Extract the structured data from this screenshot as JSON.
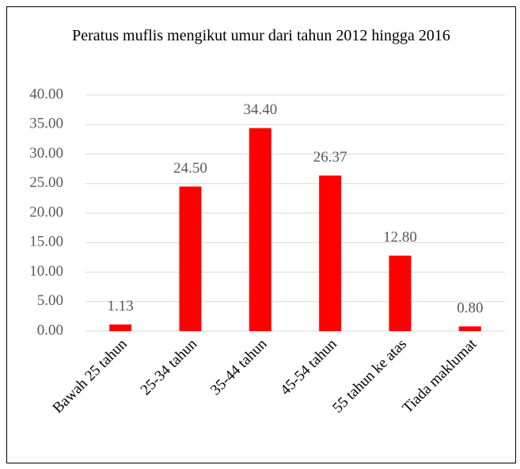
{
  "chart_data": {
    "type": "bar",
    "title": "Peratus muflis mengikut umur dari tahun 2012 hingga 2016",
    "categories": [
      "Bawah 25 tahun",
      "25-34 tahun",
      "35-44 tahun",
      "45-54 tahun",
      "55 tahun ke atas",
      "Tiada maklumat"
    ],
    "values": [
      1.13,
      24.5,
      34.4,
      26.37,
      12.8,
      0.8
    ],
    "value_labels": [
      "1.13",
      "24.50",
      "34.40",
      "26.37",
      "12.80",
      "0.80"
    ],
    "color": "#ff0000",
    "ylim": [
      0,
      40
    ],
    "yticks": [
      {
        "value": 0,
        "label": "0.00"
      },
      {
        "value": 5,
        "label": "5.00"
      },
      {
        "value": 10,
        "label": "10.00"
      },
      {
        "value": 15,
        "label": "15.00"
      },
      {
        "value": 20,
        "label": "20.00"
      },
      {
        "value": 25,
        "label": "25.00"
      },
      {
        "value": 30,
        "label": "30.00"
      },
      {
        "value": 35,
        "label": "35.00"
      },
      {
        "value": 40,
        "label": "40.00"
      }
    ],
    "grid": true
  }
}
